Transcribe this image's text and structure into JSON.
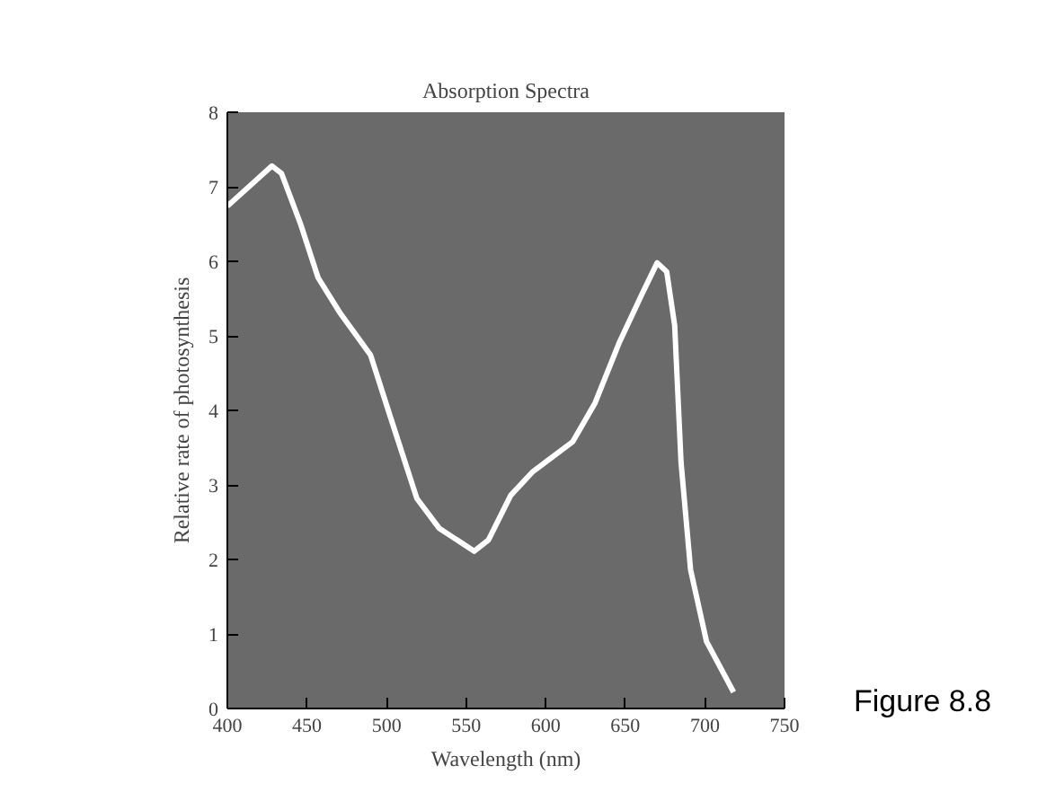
{
  "chart_data": {
    "type": "line",
    "title": "Absorption Spectra",
    "xlabel": "Wavelength (nm)",
    "ylabel": "Relative rate of photosynthesis",
    "x": [
      400,
      428,
      434,
      446,
      457,
      471,
      490,
      502,
      519,
      533,
      555,
      564,
      578,
      592,
      617,
      631,
      646,
      660,
      670,
      676,
      681,
      685,
      691,
      701,
      718
    ],
    "series": [
      {
        "color": "#ffffff",
        "values": [
          6.74,
          7.28,
          7.18,
          6.5,
          5.78,
          5.3,
          4.74,
          3.94,
          2.82,
          2.42,
          2.11,
          2.26,
          2.86,
          3.18,
          3.58,
          4.1,
          4.9,
          5.54,
          5.98,
          5.86,
          5.14,
          3.3,
          1.86,
          0.9,
          0.22
        ]
      }
    ],
    "xlim": [
      400,
      750
    ],
    "xticks": [
      400,
      450,
      500,
      550,
      600,
      650,
      700,
      750
    ],
    "ylim": [
      0,
      8
    ],
    "yticks": [
      0,
      1,
      2,
      3,
      4,
      5,
      6,
      7,
      8
    ],
    "grid": false,
    "annotations": [
      "Figure 8.8"
    ]
  }
}
